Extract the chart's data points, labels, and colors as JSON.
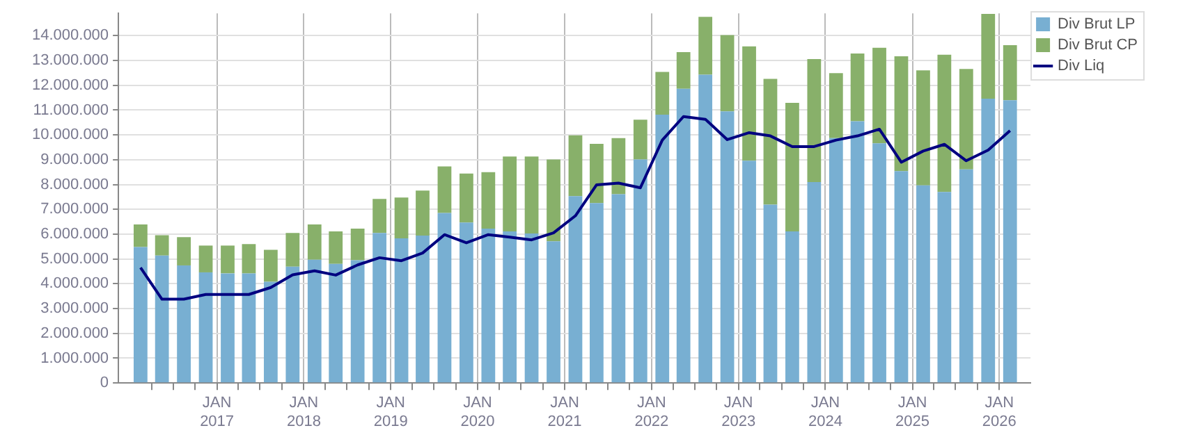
{
  "chart_data": {
    "type": "bar",
    "stacked": true,
    "grid": true,
    "legend": "top right",
    "marker": "none",
    "x": [
      "2016-02-15",
      "2016-05-15",
      "2016-08-15",
      "2016-11-15",
      "2017-02-15",
      "2017-05-15",
      "2017-08-15",
      "2017-11-15",
      "2018-02-15",
      "2018-05-15",
      "2018-08-15",
      "2018-11-15",
      "2019-02-15",
      "2019-05-15",
      "2019-08-15",
      "2019-11-15",
      "2020-02-15",
      "2020-05-15",
      "2020-08-15",
      "2020-11-15",
      "2021-02-15",
      "2021-05-15",
      "2021-08-15",
      "2021-11-15",
      "2022-02-15",
      "2022-05-15",
      "2022-08-15",
      "2022-11-15",
      "2023-02-15",
      "2023-05-15",
      "2023-08-15",
      "2023-11-15",
      "2024-02-15",
      "2024-05-15",
      "2024-08-15",
      "2024-11-15",
      "2025-02-15",
      "2025-05-15",
      "2025-08-15",
      "2025-11-15",
      "2026-02-15"
    ],
    "series": [
      {
        "name": "Div Brut LP",
        "color": "#78afd2",
        "values": [
          5480000,
          5140000,
          4740000,
          4460000,
          4420000,
          4420000,
          4080000,
          4690000,
          4970000,
          4800000,
          4950000,
          6050000,
          5830000,
          5940000,
          6850000,
          6470000,
          6220000,
          6110000,
          6030000,
          5710000,
          7530000,
          7250000,
          7610000,
          9010000,
          10820000,
          11860000,
          12430000,
          10950000,
          8960000,
          7190000,
          6110000,
          8100000,
          9870000,
          10550000,
          9660000,
          8540000,
          7970000,
          7700000,
          8610000,
          11460000,
          11400000
        ]
      },
      {
        "name": "Div Brut CP",
        "color": "#88b06a",
        "values": [
          910000,
          820000,
          1140000,
          1080000,
          1120000,
          1180000,
          1290000,
          1360000,
          1420000,
          1310000,
          1270000,
          1370000,
          1650000,
          1820000,
          1880000,
          1970000,
          2280000,
          3020000,
          3100000,
          3300000,
          2450000,
          2390000,
          2260000,
          1600000,
          1720000,
          1480000,
          2330000,
          3070000,
          4610000,
          5070000,
          5180000,
          4960000,
          2620000,
          2730000,
          3850000,
          4630000,
          4630000,
          5530000,
          4050000,
          3420000,
          2220000
        ]
      },
      {
        "name": "Div Liq",
        "type": "line",
        "color": "#000080",
        "values": [
          4650000,
          3380000,
          3380000,
          3570000,
          3570000,
          3570000,
          3850000,
          4360000,
          4520000,
          4350000,
          4760000,
          5050000,
          4930000,
          5240000,
          5980000,
          5650000,
          5980000,
          5880000,
          5770000,
          6050000,
          6740000,
          7990000,
          8060000,
          7870000,
          9790000,
          10740000,
          10630000,
          9810000,
          10090000,
          9960000,
          9530000,
          9530000,
          9790000,
          9960000,
          10230000,
          8900000,
          9350000,
          9620000,
          8960000,
          9390000,
          10170000
        ]
      }
    ],
    "ylim": [
      0,
      14900000
    ],
    "yticks": [
      {
        "value": 0,
        "label": "0"
      },
      {
        "value": 1000000,
        "label": "1.000.000"
      },
      {
        "value": 2000000,
        "label": "2.000.000"
      },
      {
        "value": 3000000,
        "label": "3.000.000"
      },
      {
        "value": 4000000,
        "label": "4.000.000"
      },
      {
        "value": 5000000,
        "label": "5.000.000"
      },
      {
        "value": 6000000,
        "label": "6.000.000"
      },
      {
        "value": 7000000,
        "label": "7.000.000"
      },
      {
        "value": 8000000,
        "label": "8.000.000"
      },
      {
        "value": 9000000,
        "label": "9.000.000"
      },
      {
        "value": 10000000,
        "label": "10.000.000"
      },
      {
        "value": 11000000,
        "label": "11.000.000"
      },
      {
        "value": 12000000,
        "label": "12.000.000"
      },
      {
        "value": 13000000,
        "label": "13.000.000"
      },
      {
        "value": 14000000,
        "label": "14.000.000"
      }
    ],
    "xlim": [
      "2016-01-01",
      "2026-03-25"
    ],
    "xticks": [
      {
        "value": "2016-04-01",
        "label": null
      },
      {
        "value": "2016-07-01",
        "label": null
      },
      {
        "value": "2016-10-01",
        "label": null
      },
      {
        "value": "2017-01-01",
        "label": "JAN 2017"
      },
      {
        "value": "2017-04-01",
        "label": null
      },
      {
        "value": "2017-07-01",
        "label": null
      },
      {
        "value": "2017-10-01",
        "label": null
      },
      {
        "value": "2018-01-01",
        "label": "JAN 2018"
      },
      {
        "value": "2018-04-01",
        "label": null
      },
      {
        "value": "2018-07-01",
        "label": null
      },
      {
        "value": "2018-10-01",
        "label": null
      },
      {
        "value": "2019-01-01",
        "label": "JAN 2019"
      },
      {
        "value": "2019-04-01",
        "label": null
      },
      {
        "value": "2019-07-01",
        "label": null
      },
      {
        "value": "2019-10-01",
        "label": null
      },
      {
        "value": "2020-01-01",
        "label": "JAN 2020"
      },
      {
        "value": "2020-04-01",
        "label": null
      },
      {
        "value": "2020-07-01",
        "label": null
      },
      {
        "value": "2020-10-01",
        "label": null
      },
      {
        "value": "2021-01-01",
        "label": "JAN 2021"
      },
      {
        "value": "2021-04-01",
        "label": null
      },
      {
        "value": "2021-07-01",
        "label": null
      },
      {
        "value": "2021-10-01",
        "label": null
      },
      {
        "value": "2022-01-01",
        "label": "JAN 2022"
      },
      {
        "value": "2022-04-01",
        "label": null
      },
      {
        "value": "2022-07-01",
        "label": null
      },
      {
        "value": "2022-10-01",
        "label": null
      },
      {
        "value": "2023-01-01",
        "label": "JAN 2023"
      },
      {
        "value": "2023-04-01",
        "label": null
      },
      {
        "value": "2023-07-01",
        "label": null
      },
      {
        "value": "2023-10-01",
        "label": null
      },
      {
        "value": "2024-01-01",
        "label": "JAN 2024"
      },
      {
        "value": "2024-04-01",
        "label": null
      },
      {
        "value": "2024-07-01",
        "label": null
      },
      {
        "value": "2024-10-01",
        "label": null
      },
      {
        "value": "2025-01-01",
        "label": "JAN 2025"
      },
      {
        "value": "2025-04-01",
        "label": null
      },
      {
        "value": "2025-07-01",
        "label": null
      },
      {
        "value": "2025-10-01",
        "label": null
      },
      {
        "value": "2026-01-01",
        "label": "JAN 2026"
      }
    ]
  }
}
